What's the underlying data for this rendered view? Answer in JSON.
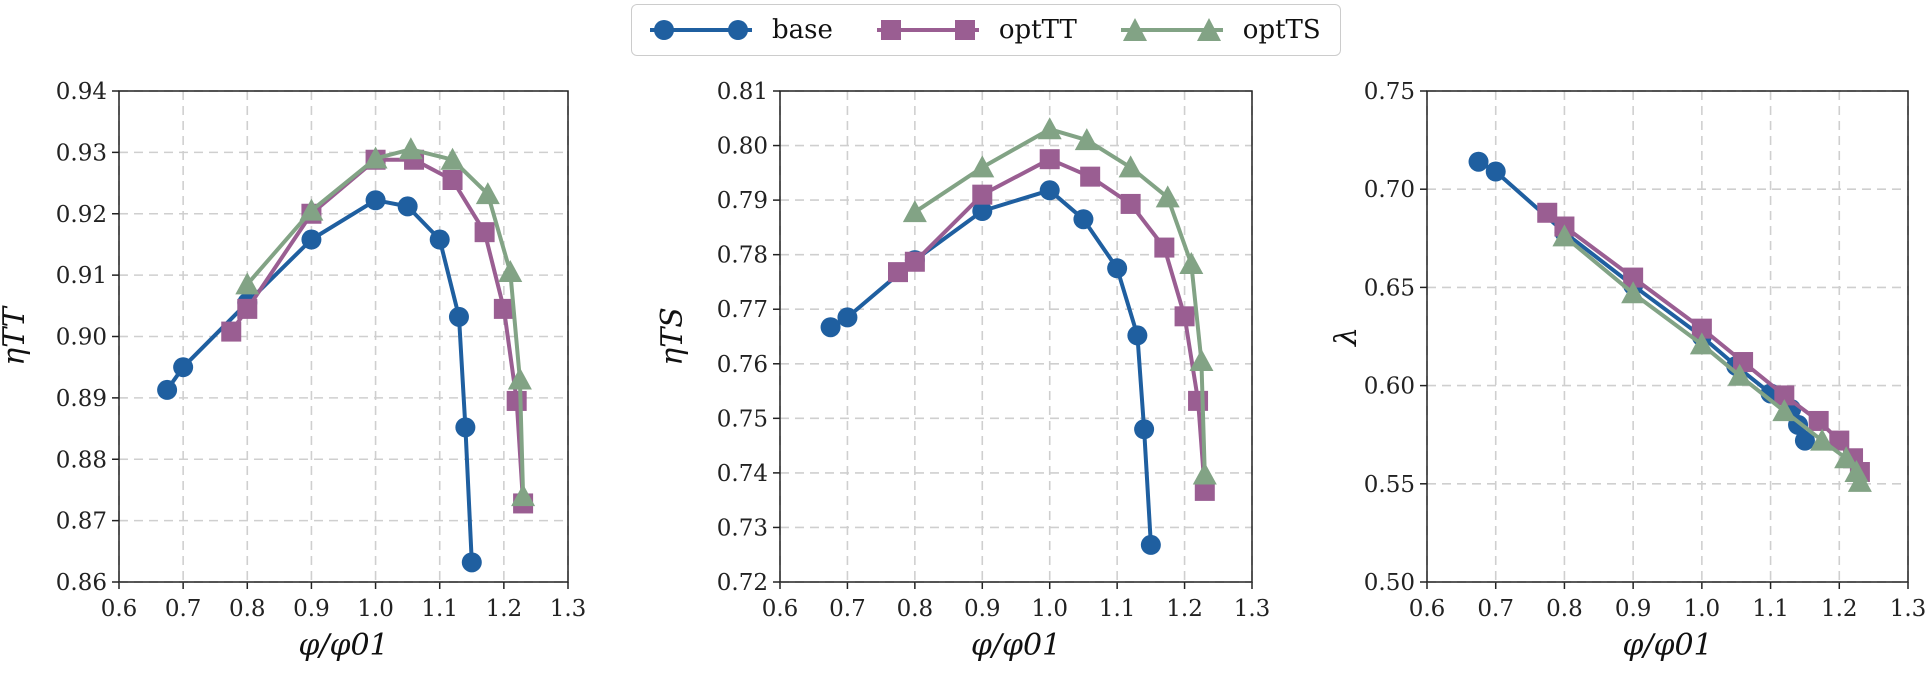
{
  "legend": {
    "items": [
      {
        "label": "base",
        "color": "#1f5fa0",
        "marker": "circle"
      },
      {
        "label": "optTT",
        "color": "#9a5e92",
        "marker": "square"
      },
      {
        "label": "optTS",
        "color": "#82a385",
        "marker": "triangle"
      }
    ]
  },
  "chart_data": [
    {
      "type": "line",
      "xlabel": "φ/φ01",
      "ylabel": "ηTT",
      "xlim": [
        0.6,
        1.3
      ],
      "ylim": [
        0.86,
        0.94
      ],
      "xticks": [
        "0.6",
        "0.7",
        "0.8",
        "0.9",
        "1.0",
        "1.1",
        "1.2",
        "1.3"
      ],
      "yticks": [
        "0.86",
        "0.87",
        "0.88",
        "0.89",
        "0.90",
        "0.91",
        "0.92",
        "0.93",
        "0.94"
      ],
      "grid": true,
      "series": [
        {
          "name": "base",
          "x": [
            0.675,
            0.7,
            0.8,
            0.9,
            1.0,
            1.05,
            1.1,
            1.13,
            1.14,
            1.15
          ],
          "y": [
            0.8913,
            0.895,
            0.9055,
            0.9158,
            0.9222,
            0.9212,
            0.9158,
            0.9032,
            0.8852,
            0.8632
          ]
        },
        {
          "name": "optTT",
          "x": [
            0.775,
            0.8,
            0.9,
            1.0,
            1.06,
            1.12,
            1.17,
            1.2,
            1.22,
            1.23
          ],
          "y": [
            0.9008,
            0.9045,
            0.92,
            0.9288,
            0.9288,
            0.9255,
            0.917,
            0.9045,
            0.8895,
            0.8728
          ]
        },
        {
          "name": "optTS",
          "x": [
            0.8,
            0.9,
            1.0,
            1.055,
            1.12,
            1.175,
            1.21,
            1.225,
            1.23
          ],
          "y": [
            0.9085,
            0.9205,
            0.929,
            0.9305,
            0.9288,
            0.9232,
            0.9105,
            0.893,
            0.874
          ]
        }
      ]
    },
    {
      "type": "line",
      "xlabel": "φ/φ01",
      "ylabel": "ηTS",
      "xlim": [
        0.6,
        1.3
      ],
      "ylim": [
        0.72,
        0.81
      ],
      "xticks": [
        "0.6",
        "0.7",
        "0.8",
        "0.9",
        "1.0",
        "1.1",
        "1.2",
        "1.3"
      ],
      "yticks": [
        "0.72",
        "0.73",
        "0.74",
        "0.75",
        "0.76",
        "0.77",
        "0.78",
        "0.79",
        "0.80",
        "0.81"
      ],
      "grid": true,
      "series": [
        {
          "name": "base",
          "x": [
            0.675,
            0.7,
            0.8,
            0.9,
            1.0,
            1.05,
            1.1,
            1.13,
            1.14,
            1.15
          ],
          "y": [
            0.7667,
            0.7685,
            0.779,
            0.788,
            0.7918,
            0.7865,
            0.7775,
            0.7652,
            0.748,
            0.7268
          ]
        },
        {
          "name": "optTT",
          "x": [
            0.775,
            0.8,
            0.9,
            1.0,
            1.06,
            1.12,
            1.17,
            1.2,
            1.22,
            1.23
          ],
          "y": [
            0.7768,
            0.7787,
            0.791,
            0.7975,
            0.7943,
            0.7893,
            0.7813,
            0.7687,
            0.7532,
            0.7367
          ]
        },
        {
          "name": "optTS",
          "x": [
            0.8,
            0.9,
            1.0,
            1.055,
            1.12,
            1.175,
            1.21,
            1.225,
            1.23
          ],
          "y": [
            0.7878,
            0.796,
            0.803,
            0.801,
            0.796,
            0.7905,
            0.7783,
            0.7605,
            0.7397
          ]
        }
      ]
    },
    {
      "type": "line",
      "xlabel": "φ/φ01",
      "ylabel": "λ",
      "xlim": [
        0.6,
        1.3
      ],
      "ylim": [
        0.5,
        0.75
      ],
      "xticks": [
        "0.6",
        "0.7",
        "0.8",
        "0.9",
        "1.0",
        "1.1",
        "1.2",
        "1.3"
      ],
      "yticks": [
        "0.50",
        "0.55",
        "0.60",
        "0.65",
        "0.70",
        "0.75"
      ],
      "grid": true,
      "series": [
        {
          "name": "base",
          "x": [
            0.675,
            0.7,
            0.8,
            0.9,
            1.0,
            1.05,
            1.1,
            1.13,
            1.14,
            1.15
          ],
          "y": [
            0.714,
            0.709,
            0.678,
            0.651,
            0.625,
            0.61,
            0.596,
            0.588,
            0.58,
            0.572
          ]
        },
        {
          "name": "optTT",
          "x": [
            0.775,
            0.8,
            0.9,
            1.0,
            1.06,
            1.12,
            1.17,
            1.2,
            1.22,
            1.23
          ],
          "y": [
            0.688,
            0.681,
            0.655,
            0.629,
            0.612,
            0.595,
            0.582,
            0.572,
            0.563,
            0.556
          ]
        },
        {
          "name": "optTS",
          "x": [
            0.8,
            0.9,
            1.0,
            1.055,
            1.12,
            1.175,
            1.21,
            1.225,
            1.23
          ],
          "y": [
            0.676,
            0.647,
            0.621,
            0.605,
            0.587,
            0.572,
            0.563,
            0.556,
            0.551
          ]
        }
      ]
    }
  ]
}
